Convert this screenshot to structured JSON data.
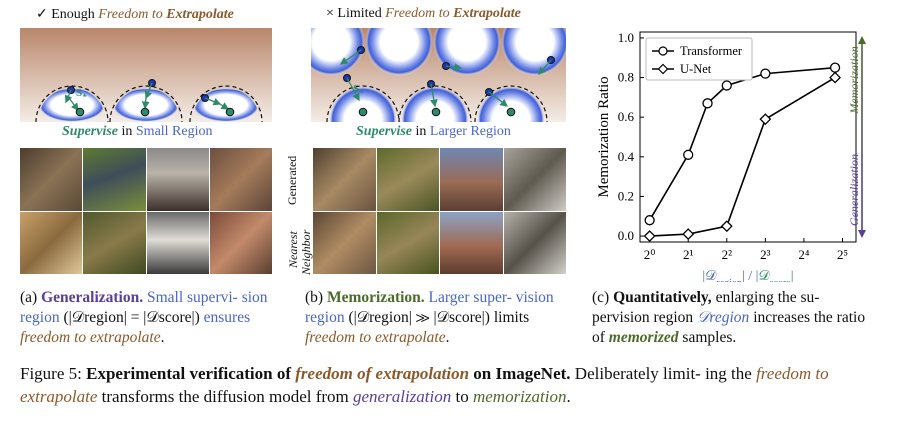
{
  "panel_a": {
    "header_prefix": "✓ Enough ",
    "header_freedom": "Freedom to ",
    "header_extrapolate": "Extrapolate",
    "supervise_word": "Supervise",
    "supervise_rest": " in ",
    "region": "Small Region",
    "s_label": "S",
    "s_sub": "⋆"
  },
  "panel_b": {
    "header_prefix": "× Limited ",
    "header_freedom": "Freedom to ",
    "header_extrapolate": "Extrapolate",
    "supervise_word": "Supervise",
    "supervise_rest": " in ",
    "region": "Larger Region",
    "s_label": "S",
    "s_sub": "⋆",
    "row_label_generated": "Generated",
    "row_label_nearest_1": "Nearest",
    "row_label_nearest_2": "Neighbor"
  },
  "chart_data": {
    "type": "line",
    "xlabel_left": "|𝒟",
    "xlabel_left_sub": "region",
    "xlabel_mid": "| / |",
    "xlabel_right": "𝒟",
    "xlabel_right_sub": "score",
    "xlabel_end": "|",
    "ylabel": "Memorization Ratio",
    "xscale": "log2",
    "xticks": [
      "2⁰",
      "2¹",
      "2²",
      "2³",
      "2⁴",
      "2⁵"
    ],
    "xtick_values": [
      1,
      2,
      4,
      8,
      16,
      32
    ],
    "yticks": [
      "0.0",
      "0.2",
      "0.4",
      "0.6",
      "0.8",
      "1.0"
    ],
    "ytick_values": [
      0.0,
      0.2,
      0.4,
      0.6,
      0.8,
      1.0
    ],
    "ylim": [
      -0.03,
      1.03
    ],
    "xlim_log2": [
      -0.25,
      5.35
    ],
    "legend_position": "top-left",
    "series": [
      {
        "name": "Transformer",
        "marker": "circle",
        "x": [
          1,
          2,
          2.83,
          4,
          8,
          28
        ],
        "y": [
          0.08,
          0.41,
          0.67,
          0.76,
          0.82,
          0.85
        ]
      },
      {
        "name": "U-Net",
        "marker": "diamond",
        "x": [
          1,
          2,
          4,
          8,
          28
        ],
        "y": [
          0.0,
          0.01,
          0.05,
          0.59,
          0.8
        ]
      }
    ],
    "arrow_top_label": "Memorization",
    "arrow_bottom_label": "Generalization",
    "colors": {
      "memorization": "#4b6b2a",
      "generalization": "#5a3f99",
      "series": "#000000"
    }
  },
  "captions": {
    "a_tag": "(a) ",
    "a_bold": "Generalization.",
    "a_blue": " Small supervi- sion region ",
    "a_math": "(|𝒟region| = |𝒟score|)",
    "a_ens": " ensures ",
    "a_brown": "freedom to extrapolate",
    "a_end": ".",
    "b_tag": "(b) ",
    "b_bold": "Memorization.",
    "b_blue": " Larger super- vision region ",
    "b_math": "(|𝒟region| ≫ |𝒟score|)",
    "b_lim": " limits ",
    "b_brown": "freedom to extrapolate",
    "b_end": ".",
    "c_tag": "(c) ",
    "c_bold": "Quantitatively,",
    "c_text1": " enlarging the su- pervision region ",
    "c_blue": "𝒟region",
    "c_text2": " increases the ratio of ",
    "c_green": "memorized",
    "c_text3": " samples."
  },
  "figure_caption": {
    "label": "Figure 5: ",
    "bold1": "Experimental verification of ",
    "brownbi": "freedom of extrapolation",
    "bold2": " on ImageNet.",
    "text1": " Deliberately limit- ing the ",
    "brownit": "freedom to extrapolate",
    "text2": " transforms the diffusion model from ",
    "purpleit": "generalization",
    "text3": " to ",
    "greenit": "memorization",
    "text4": "."
  },
  "thumbnails": {
    "a_top": [
      "#6f5a43",
      "#6c7a3a",
      "#8f8a82",
      "#8c6d52"
    ],
    "a_bottom": [
      "#9a7a4a",
      "#6f6a3e",
      "#7d7d7c",
      "#8a6a55"
    ],
    "b_top": [
      "#7f6448",
      "#6a6d39",
      "#7a5a4a",
      "#7a7670"
    ],
    "b_bottom": [
      "#8a6a4a",
      "#6c6a3c",
      "#8a5f4b",
      "#716c60"
    ]
  }
}
